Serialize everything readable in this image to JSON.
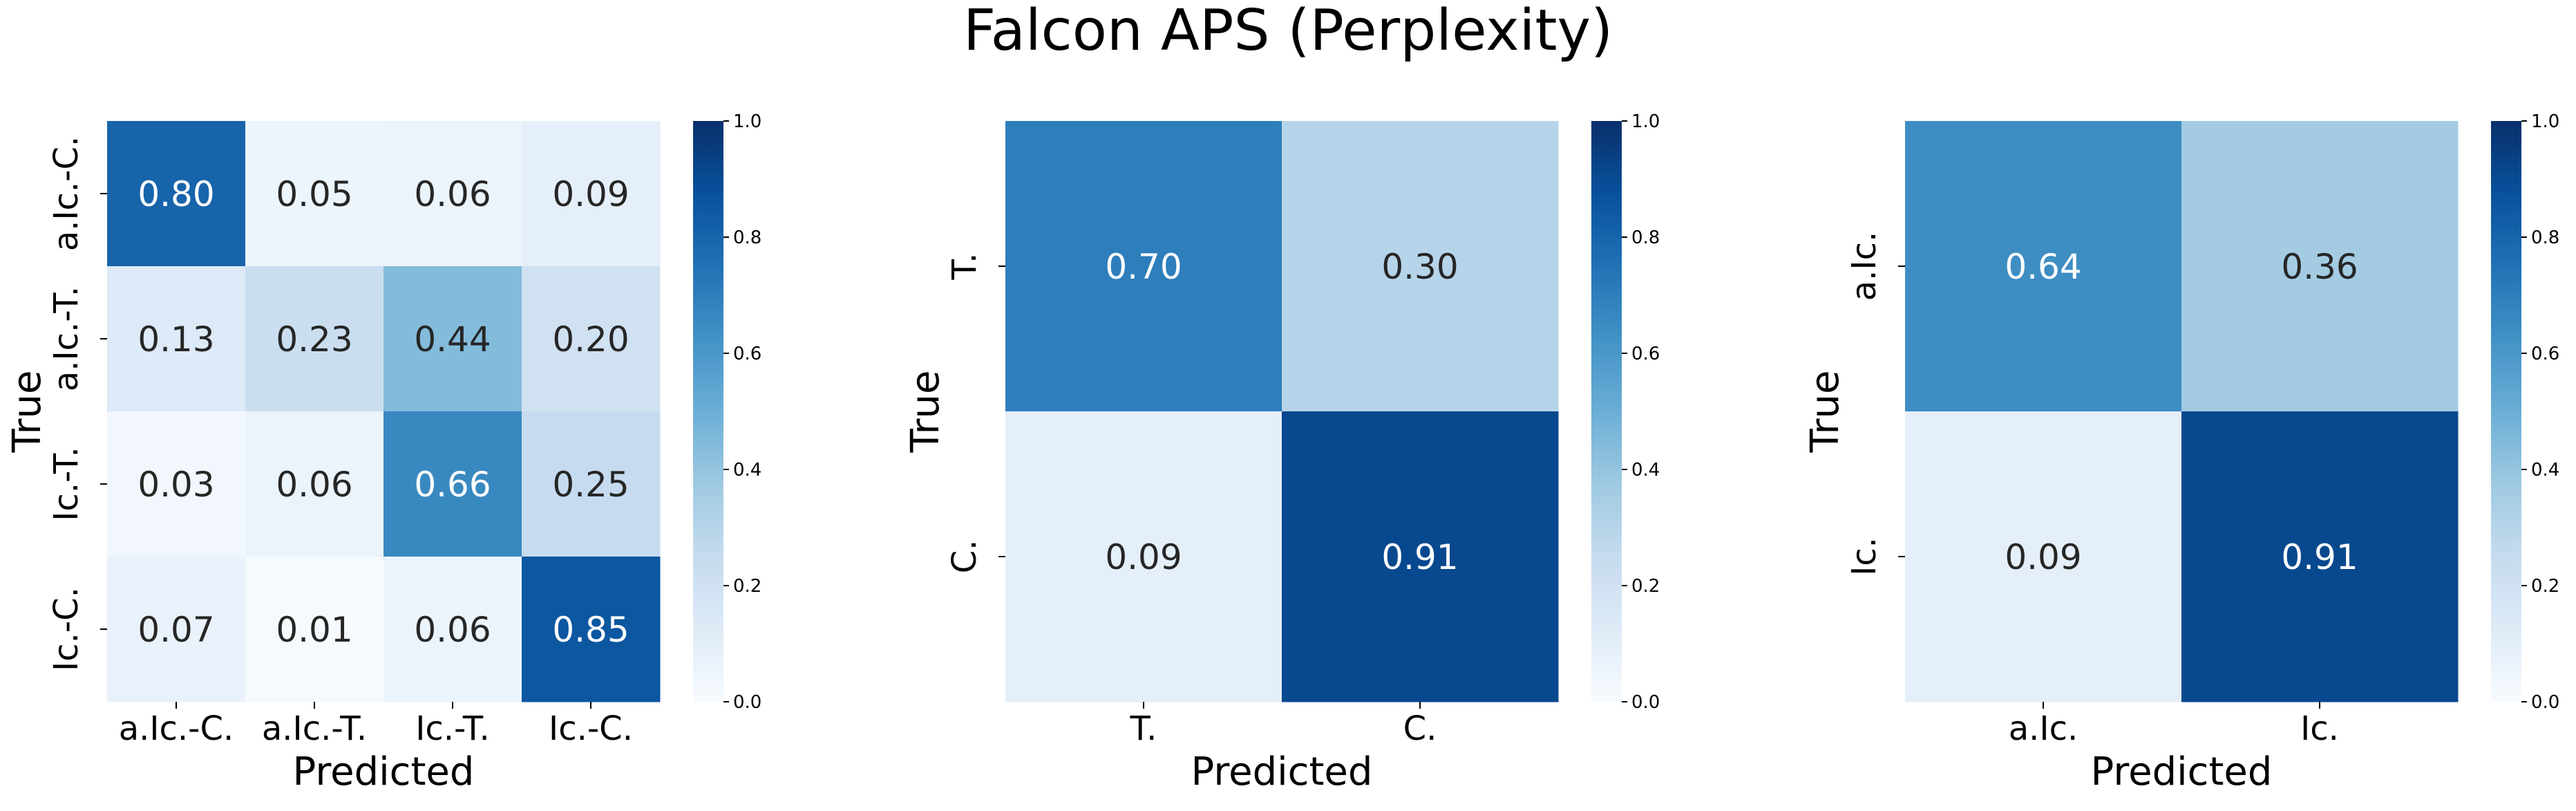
{
  "figure": {
    "title": "Falcon APS (Perplexity)"
  },
  "colormap": {
    "name": "Blues",
    "stops": [
      "#f7fbff",
      "#deebf7",
      "#c6dbef",
      "#9ecae1",
      "#6baed6",
      "#4292c6",
      "#2171b5",
      "#08519c",
      "#08306b"
    ],
    "light_text": "#ffffff",
    "dark_text": "#262626"
  },
  "chart_data": [
    {
      "type": "heatmap",
      "xlabel": "Predicted",
      "ylabel": "True",
      "categories_x": [
        "a.Ic.-C.",
        "a.Ic.-T.",
        "Ic.-T.",
        "Ic.-C."
      ],
      "categories_y": [
        "a.Ic.-C.",
        "a.Ic.-T.",
        "Ic.-T.",
        "Ic.-C."
      ],
      "values": [
        [
          0.8,
          0.05,
          0.06,
          0.09
        ],
        [
          0.13,
          0.23,
          0.44,
          0.2
        ],
        [
          0.03,
          0.06,
          0.66,
          0.25
        ],
        [
          0.07,
          0.01,
          0.06,
          0.85
        ]
      ],
      "value_format": "0.00",
      "colorbar": {
        "min": 0.0,
        "max": 1.0,
        "ticks": [
          "0.0",
          "0.2",
          "0.4",
          "0.6",
          "0.8",
          "1.0"
        ]
      }
    },
    {
      "type": "heatmap",
      "xlabel": "Predicted",
      "ylabel": "True",
      "categories_x": [
        "T.",
        "C."
      ],
      "categories_y": [
        "T.",
        "C."
      ],
      "values": [
        [
          0.7,
          0.3
        ],
        [
          0.09,
          0.91
        ]
      ],
      "value_format": "0.00",
      "colorbar": {
        "min": 0.0,
        "max": 1.0,
        "ticks": [
          "0.0",
          "0.2",
          "0.4",
          "0.6",
          "0.8",
          "1.0"
        ]
      }
    },
    {
      "type": "heatmap",
      "xlabel": "Predicted",
      "ylabel": "True",
      "categories_x": [
        "a.Ic.",
        "Ic."
      ],
      "categories_y": [
        "a.Ic.",
        "Ic."
      ],
      "values": [
        [
          0.64,
          0.36
        ],
        [
          0.09,
          0.91
        ]
      ],
      "value_format": "0.00",
      "colorbar": {
        "min": 0.0,
        "max": 1.0,
        "ticks": [
          "0.0",
          "0.2",
          "0.4",
          "0.6",
          "0.8",
          "1.0"
        ]
      }
    }
  ]
}
